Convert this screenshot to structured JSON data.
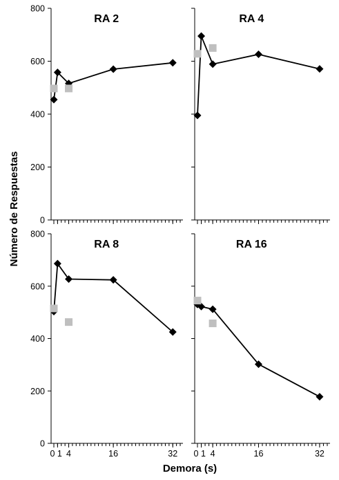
{
  "chart_data": [
    {
      "type": "scatter",
      "title": "RA 2",
      "x_ticks": [
        0,
        1,
        4,
        16,
        32
      ],
      "x_tick_labels": [
        "0",
        "1",
        "4",
        "16",
        "32"
      ],
      "x_tick_labels_shown": false,
      "y_ticks": [
        0,
        200,
        400,
        600,
        800
      ],
      "y_tick_labels_shown": true,
      "ylim": [
        0,
        800
      ],
      "xlim": [
        0,
        34
      ],
      "series": [
        {
          "x": [
            0,
            1,
            4,
            16,
            32
          ],
          "y": [
            455,
            558,
            516,
            570,
            594
          ],
          "marker": "diamond",
          "color": "#000000",
          "line": true
        },
        {
          "x": [
            0,
            4
          ],
          "y": [
            497,
            497
          ],
          "marker": "square",
          "color": "#bfbfbf",
          "line": false
        }
      ]
    },
    {
      "type": "scatter",
      "title": "RA 4",
      "x_ticks": [
        0,
        1,
        4,
        16,
        32
      ],
      "x_tick_labels": [
        "0",
        "1",
        "4",
        "16",
        "32"
      ],
      "x_tick_labels_shown": false,
      "y_ticks": [
        0,
        200,
        400,
        600,
        800
      ],
      "y_tick_labels_shown": false,
      "ylim": [
        0,
        800
      ],
      "xlim": [
        0,
        34
      ],
      "series": [
        {
          "x": [
            0,
            1,
            4,
            16,
            32
          ],
          "y": [
            395,
            695,
            589,
            626,
            571
          ],
          "marker": "diamond",
          "color": "#000000",
          "line": true
        },
        {
          "x": [
            0,
            4
          ],
          "y": [
            628,
            650
          ],
          "marker": "square",
          "color": "#bfbfbf",
          "line": false
        }
      ]
    },
    {
      "type": "scatter",
      "title": "RA 8",
      "x_ticks": [
        0,
        1,
        4,
        16,
        32
      ],
      "x_tick_labels": [
        "0",
        "1",
        "4",
        "16",
        "32"
      ],
      "x_tick_labels_shown": true,
      "y_ticks": [
        0,
        200,
        400,
        600,
        800
      ],
      "y_tick_labels_shown": true,
      "ylim": [
        0,
        800
      ],
      "xlim": [
        0,
        34
      ],
      "series": [
        {
          "x": [
            0,
            1,
            4,
            16,
            32
          ],
          "y": [
            503,
            686,
            627,
            624,
            425
          ],
          "marker": "diamond",
          "color": "#000000",
          "line": true
        },
        {
          "x": [
            0,
            4
          ],
          "y": [
            515,
            463
          ],
          "marker": "square",
          "color": "#bfbfbf",
          "line": false
        }
      ]
    },
    {
      "type": "scatter",
      "title": "RA 16",
      "x_ticks": [
        0,
        1,
        4,
        16,
        32
      ],
      "x_tick_labels": [
        "0",
        "1",
        "4",
        "16",
        "32"
      ],
      "x_tick_labels_shown": true,
      "y_ticks": [
        0,
        200,
        400,
        600,
        800
      ],
      "y_tick_labels_shown": false,
      "ylim": [
        0,
        800
      ],
      "xlim": [
        0,
        34
      ],
      "series": [
        {
          "x": [
            0,
            1,
            4,
            16,
            32
          ],
          "y": [
            530,
            522,
            512,
            302,
            178
          ],
          "marker": "diamond",
          "color": "#000000",
          "line": true
        },
        {
          "x": [
            0,
            4
          ],
          "y": [
            545,
            458
          ],
          "marker": "square",
          "color": "#bfbfbf",
          "line": false
        }
      ]
    }
  ],
  "xlabel": "Demora (s)",
  "ylabel": "Número de Respuestas",
  "x_tick_label_text": "01 4 16 32"
}
